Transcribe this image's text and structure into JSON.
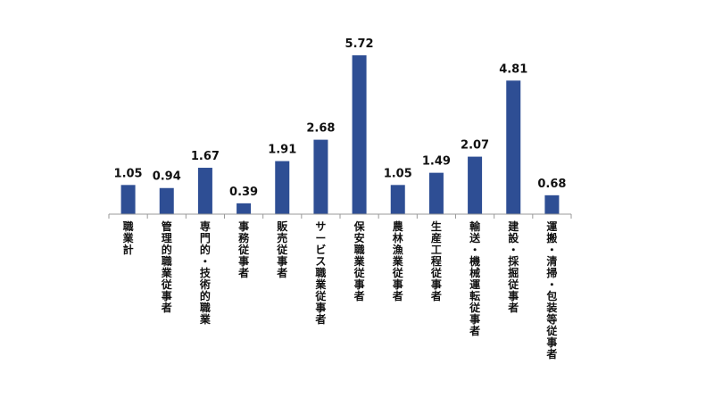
{
  "chart_data": {
    "type": "bar",
    "categories": [
      "職業計",
      "管理的職業従事者",
      "専門的・技術的職業",
      "事務従事者",
      "販売従事者",
      "サービス職業従事者",
      "保安職業従事者",
      "農林漁業従事者",
      "生産工程従事者",
      "輸送・機械運転従事者",
      "建設・採掘従事者",
      "運搬・清掃・包装等従事者"
    ],
    "values": [
      1.05,
      0.94,
      1.67,
      0.39,
      1.91,
      2.68,
      5.72,
      1.05,
      1.49,
      2.07,
      4.81,
      0.68
    ],
    "value_labels": [
      "1.05",
      "0.94",
      "1.67",
      "0.39",
      "1.91",
      "2.68",
      "5.72",
      "1.05",
      "1.49",
      "2.07",
      "4.81",
      "0.68"
    ],
    "ylim": [
      0,
      5.72
    ],
    "grid": false,
    "legend": "none",
    "bar_color": "#2E4E94"
  }
}
